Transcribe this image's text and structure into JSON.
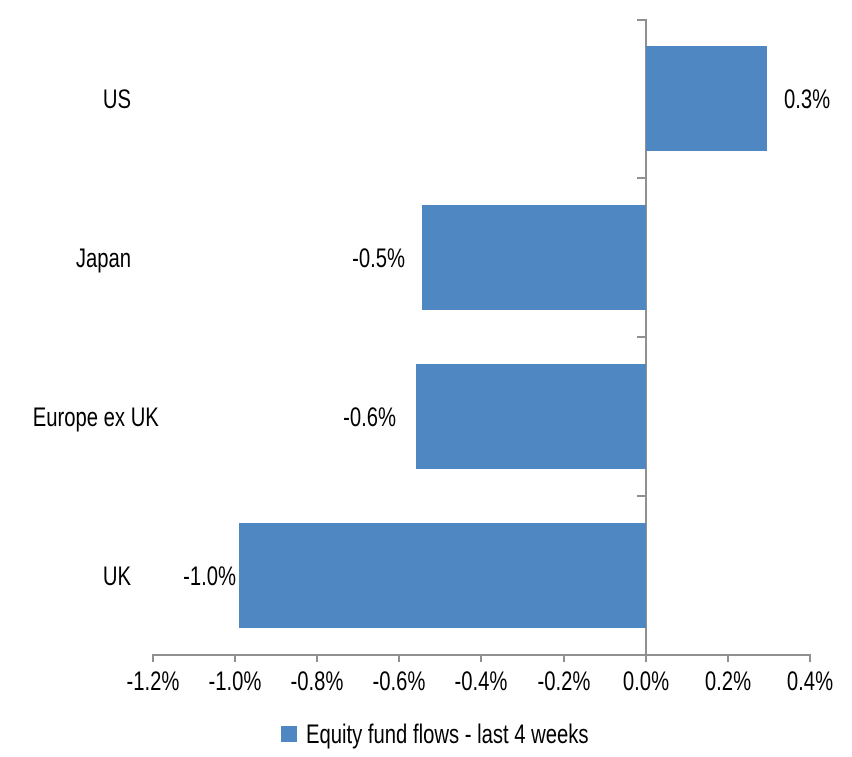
{
  "chart_data": {
    "type": "bar",
    "orientation": "horizontal",
    "title": "",
    "xlabel": "",
    "ylabel": "",
    "value_suffix": "%",
    "categories": [
      "US",
      "Japan",
      "Europe ex UK",
      "UK"
    ],
    "series": [
      {
        "name": "Equity fund flows - last 4 weeks",
        "values": [
          0.3,
          -0.5,
          -0.6,
          -1.0
        ],
        "values_precise": [
          0.295,
          -0.545,
          -0.56,
          -0.99
        ],
        "data_labels": [
          "0.3%",
          "-0.5%",
          "-0.6%",
          "-1.0%"
        ],
        "color": "#4E87C1"
      }
    ],
    "xlim": [
      -1.2,
      0.4
    ],
    "x_tick_values": [
      -1.2,
      -1.0,
      -0.8,
      -0.6,
      -0.4,
      -0.2,
      0.0,
      0.2,
      0.4
    ],
    "x_tick_labels": [
      "-1.2%",
      "-1.0%",
      "-0.8%",
      "-0.6%",
      "-0.4%",
      "-0.2%",
      "0.0%",
      "0.2%",
      "0.4%"
    ],
    "grid": false,
    "legend_position": "bottom",
    "colors": {
      "bar": "#4E87C1",
      "axis": "#909090",
      "text": "#000000",
      "background": "#FFFFFF"
    }
  }
}
